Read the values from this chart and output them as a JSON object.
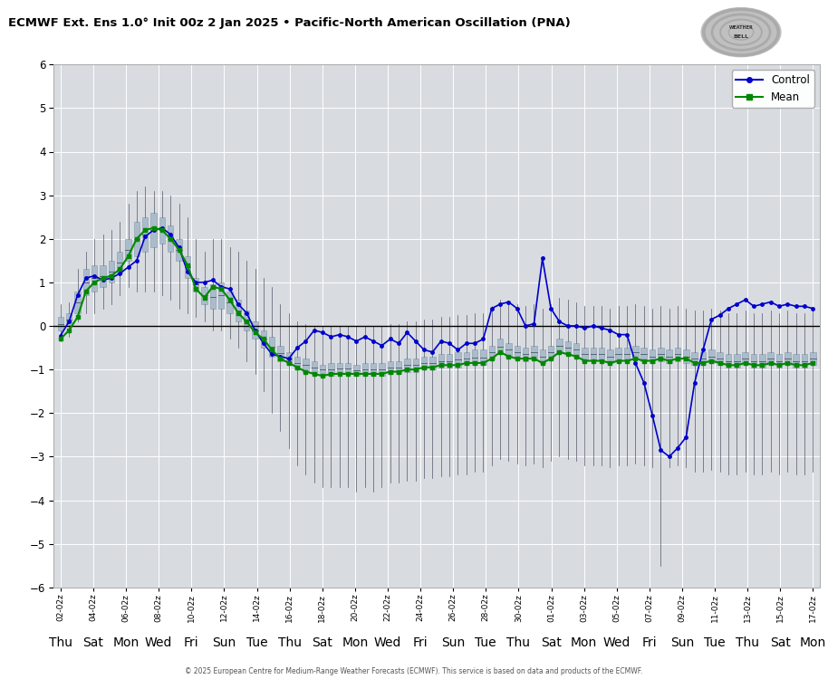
{
  "title": "ECMWF Ext. Ens 1.0° Init 00z 2 Jan 2025 • Pacific-North American Oscillation (PNA)",
  "ylim": [
    -6,
    6
  ],
  "yticks": [
    -6,
    -5,
    -4,
    -3,
    -2,
    -1,
    0,
    1,
    2,
    3,
    4,
    5,
    6
  ],
  "bg_color": "#d8dce0",
  "copyright": "© 2025 European Centre for Medium-Range Weather Forecasts (ECMWF). This service is based on data and products of the ECMWF.",
  "x_dates": [
    "02-02z",
    "04-02z",
    "06-02z",
    "08-02z",
    "10-02z",
    "12-02z",
    "14-02z",
    "16-02z",
    "18-02z",
    "20-02z",
    "22-02z",
    "24-02z",
    "26-02z",
    "28-02z",
    "30-02z",
    "01-02z",
    "03-02z",
    "05-02z",
    "07-02z",
    "09-02z",
    "11-02z",
    "13-02z",
    "15-02z",
    "17-02z"
  ],
  "x_days": [
    "Thu",
    "Sat",
    "Mon",
    "Wed",
    "Fri",
    "Sun",
    "Tue",
    "Thu",
    "Sat",
    "Mon",
    "Wed",
    "Fri",
    "Sun",
    "Tue",
    "Thu",
    "Sat",
    "Mon",
    "Wed",
    "Fri",
    "Sun",
    "Tue",
    "Thu",
    "Sat",
    "Mon"
  ],
  "control_color": "#0000cc",
  "mean_color": "#008800",
  "box_face_color": "#aabbcc",
  "box_edge_color": "#8899aa",
  "whisker_color": "#555566",
  "legend_control": "Control",
  "legend_mean": "Mean",
  "n_steps": 90,
  "control_y": [
    -0.22,
    0.1,
    0.7,
    1.1,
    1.15,
    1.05,
    1.1,
    1.2,
    1.35,
    1.5,
    2.05,
    2.2,
    2.25,
    2.1,
    1.8,
    1.25,
    1.0,
    1.0,
    1.05,
    0.9,
    0.85,
    0.5,
    0.3,
    -0.1,
    -0.4,
    -0.65,
    -0.7,
    -0.75,
    -0.5,
    -0.35,
    -0.1,
    -0.15,
    -0.25,
    -0.2,
    -0.25,
    -0.35,
    -0.25,
    -0.35,
    -0.45,
    -0.3,
    -0.4,
    -0.15,
    -0.35,
    -0.55,
    -0.6,
    -0.35,
    -0.4,
    -0.55,
    -0.4,
    -0.4,
    -0.3,
    0.4,
    0.5,
    0.55,
    0.4,
    0.0,
    0.05,
    1.55,
    0.4,
    0.1,
    0.0,
    0.0,
    -0.05,
    0.0,
    -0.05,
    -0.1,
    -0.2,
    -0.2,
    -0.85,
    -1.3,
    -2.05,
    -2.85,
    -3.0,
    -2.8,
    -2.55,
    -1.3,
    -0.55,
    0.15,
    0.25,
    0.4,
    0.5,
    0.6,
    0.45,
    0.5,
    0.55,
    0.45,
    0.5,
    0.45,
    0.45,
    0.4
  ],
  "mean_y": [
    -0.3,
    -0.1,
    0.2,
    0.8,
    1.0,
    1.1,
    1.15,
    1.3,
    1.6,
    2.0,
    2.2,
    2.25,
    2.2,
    2.0,
    1.75,
    1.4,
    0.85,
    0.65,
    0.9,
    0.85,
    0.6,
    0.3,
    0.1,
    -0.15,
    -0.3,
    -0.55,
    -0.75,
    -0.85,
    -0.95,
    -1.05,
    -1.1,
    -1.15,
    -1.1,
    -1.1,
    -1.1,
    -1.1,
    -1.1,
    -1.1,
    -1.1,
    -1.05,
    -1.05,
    -1.0,
    -1.0,
    -0.95,
    -0.95,
    -0.9,
    -0.9,
    -0.9,
    -0.85,
    -0.85,
    -0.85,
    -0.75,
    -0.6,
    -0.7,
    -0.75,
    -0.75,
    -0.75,
    -0.85,
    -0.75,
    -0.6,
    -0.65,
    -0.7,
    -0.8,
    -0.8,
    -0.8,
    -0.85,
    -0.8,
    -0.8,
    -0.75,
    -0.8,
    -0.8,
    -0.75,
    -0.8,
    -0.75,
    -0.75,
    -0.85,
    -0.85,
    -0.8,
    -0.85,
    -0.9,
    -0.9,
    -0.85,
    -0.9,
    -0.9,
    -0.85,
    -0.9,
    -0.85,
    -0.9,
    -0.9,
    -0.85
  ],
  "box_q1": [
    -0.1,
    0.0,
    0.3,
    0.7,
    0.8,
    0.9,
    1.0,
    1.2,
    1.5,
    1.6,
    1.7,
    1.8,
    1.9,
    1.7,
    1.5,
    1.1,
    0.8,
    0.5,
    0.4,
    0.4,
    0.3,
    0.1,
    -0.1,
    -0.3,
    -0.5,
    -0.7,
    -0.8,
    -0.9,
    -1.0,
    -1.05,
    -1.1,
    -1.1,
    -1.15,
    -1.1,
    -1.1,
    -1.15,
    -1.15,
    -1.15,
    -1.15,
    -1.1,
    -1.1,
    -1.05,
    -1.05,
    -1.0,
    -1.0,
    -0.95,
    -0.95,
    -0.95,
    -0.9,
    -0.9,
    -0.9,
    -0.75,
    -0.65,
    -0.7,
    -0.75,
    -0.8,
    -0.75,
    -0.85,
    -0.75,
    -0.6,
    -0.65,
    -0.7,
    -0.8,
    -0.8,
    -0.8,
    -0.85,
    -0.8,
    -0.8,
    -0.75,
    -0.8,
    -0.85,
    -0.8,
    -0.85,
    -0.8,
    -0.85,
    -0.9,
    -0.9,
    -0.85,
    -0.9,
    -0.95,
    -0.95,
    -0.9,
    -0.95,
    -0.95,
    -0.9,
    -0.95,
    -0.9,
    -0.95,
    -0.95,
    -0.9
  ],
  "box_q3": [
    0.2,
    0.3,
    0.8,
    1.3,
    1.4,
    1.4,
    1.5,
    1.7,
    2.0,
    2.4,
    2.5,
    2.6,
    2.5,
    2.3,
    2.0,
    1.6,
    1.1,
    0.9,
    0.95,
    1.0,
    0.8,
    0.6,
    0.35,
    0.1,
    -0.1,
    -0.25,
    -0.45,
    -0.6,
    -0.7,
    -0.75,
    -0.8,
    -0.9,
    -0.85,
    -0.85,
    -0.85,
    -0.9,
    -0.85,
    -0.85,
    -0.85,
    -0.8,
    -0.8,
    -0.75,
    -0.75,
    -0.7,
    -0.7,
    -0.65,
    -0.65,
    -0.6,
    -0.6,
    -0.55,
    -0.55,
    -0.45,
    -0.3,
    -0.4,
    -0.45,
    -0.5,
    -0.45,
    -0.55,
    -0.45,
    -0.3,
    -0.35,
    -0.4,
    -0.5,
    -0.5,
    -0.5,
    -0.55,
    -0.5,
    -0.5,
    -0.45,
    -0.5,
    -0.55,
    -0.5,
    -0.55,
    -0.5,
    -0.55,
    -0.6,
    -0.6,
    -0.55,
    -0.6,
    -0.65,
    -0.65,
    -0.6,
    -0.65,
    -0.65,
    -0.6,
    -0.65,
    -0.6,
    -0.65,
    -0.65,
    -0.6
  ],
  "box_median": [
    0.05,
    0.15,
    0.55,
    1.0,
    1.1,
    1.15,
    1.25,
    1.45,
    1.75,
    2.0,
    2.1,
    2.2,
    2.2,
    2.0,
    1.75,
    1.35,
    0.95,
    0.7,
    0.67,
    0.7,
    0.55,
    0.35,
    0.12,
    -0.1,
    -0.3,
    -0.47,
    -0.62,
    -0.75,
    -0.85,
    -0.9,
    -0.95,
    -1.0,
    -1.0,
    -0.97,
    -0.97,
    -1.02,
    -1.0,
    -1.0,
    -1.0,
    -0.95,
    -0.95,
    -0.9,
    -0.9,
    -0.85,
    -0.85,
    -0.8,
    -0.8,
    -0.77,
    -0.75,
    -0.72,
    -0.72,
    -0.6,
    -0.47,
    -0.55,
    -0.6,
    -0.65,
    -0.6,
    -0.7,
    -0.6,
    -0.45,
    -0.5,
    -0.55,
    -0.65,
    -0.65,
    -0.65,
    -0.7,
    -0.65,
    -0.65,
    -0.6,
    -0.65,
    -0.7,
    -0.65,
    -0.7,
    -0.65,
    -0.7,
    -0.75,
    -0.75,
    -0.7,
    -0.75,
    -0.8,
    -0.8,
    -0.75,
    -0.8,
    -0.8,
    -0.75,
    -0.8,
    -0.75,
    -0.8,
    -0.8,
    -0.75
  ],
  "box_wlow": [
    -0.35,
    -0.25,
    0.1,
    0.3,
    0.3,
    0.4,
    0.5,
    0.7,
    0.9,
    0.8,
    0.8,
    0.8,
    0.7,
    0.6,
    0.4,
    0.3,
    0.2,
    0.1,
    -0.1,
    -0.1,
    -0.3,
    -0.3,
    -0.5,
    -0.7,
    -0.9,
    -1.05,
    -1.2,
    -1.35,
    -1.45,
    -1.5,
    -1.6,
    -1.65,
    -1.65,
    -1.65,
    -1.65,
    -1.7,
    -1.65,
    -1.7,
    -1.65,
    -1.6,
    -1.6,
    -1.55,
    -1.55,
    -1.5,
    -1.5,
    -1.45,
    -1.45,
    -1.4,
    -1.4,
    -1.35,
    -1.35,
    -1.2,
    -1.05,
    -1.1,
    -1.15,
    -1.2,
    -1.15,
    -1.25,
    -1.1,
    -1.0,
    -1.05,
    -1.1,
    -1.2,
    -1.2,
    -1.2,
    -1.25,
    -1.2,
    -1.2,
    -1.15,
    -1.2,
    -1.25,
    -1.2,
    -1.25,
    -1.2,
    -1.25,
    -1.35,
    -1.35,
    -1.3,
    -1.35,
    -1.4,
    -1.4,
    -1.35,
    -1.4,
    -1.4,
    -1.35,
    -1.4,
    -1.35,
    -1.4,
    -1.4,
    -1.35
  ],
  "box_whigh": [
    0.5,
    0.55,
    1.3,
    1.7,
    2.0,
    2.1,
    2.2,
    2.4,
    2.8,
    3.1,
    3.2,
    3.1,
    3.1,
    3.0,
    2.8,
    2.5,
    2.0,
    1.7,
    2.0,
    2.0,
    1.8,
    1.7,
    1.5,
    1.3,
    1.1,
    0.9,
    0.5,
    0.3,
    0.1,
    0.05,
    0.0,
    0.0,
    0.0,
    0.0,
    0.0,
    0.0,
    0.0,
    0.0,
    0.0,
    0.05,
    0.05,
    0.1,
    0.1,
    0.15,
    0.15,
    0.2,
    0.2,
    0.25,
    0.25,
    0.3,
    0.3,
    0.45,
    0.6,
    0.55,
    0.5,
    0.45,
    0.5,
    0.4,
    0.5,
    0.65,
    0.6,
    0.55,
    0.45,
    0.45,
    0.45,
    0.4,
    0.45,
    0.45,
    0.5,
    0.45,
    0.4,
    0.45,
    0.4,
    0.45,
    0.4,
    0.35,
    0.35,
    0.4,
    0.35,
    0.3,
    0.3,
    0.35,
    0.3,
    0.3,
    0.35,
    0.3,
    0.35,
    0.3,
    0.3,
    0.35
  ],
  "box_wlow_ext": [
    -0.35,
    -0.25,
    0.1,
    0.3,
    0.3,
    0.4,
    0.5,
    0.7,
    0.9,
    0.8,
    0.8,
    0.8,
    0.7,
    0.6,
    0.4,
    0.3,
    0.2,
    0.1,
    -0.1,
    -0.1,
    -0.3,
    -0.5,
    -0.8,
    -1.1,
    -1.5,
    -2.0,
    -2.4,
    -2.8,
    -3.2,
    -3.4,
    -3.6,
    -3.7,
    -3.7,
    -3.7,
    -3.7,
    -3.8,
    -3.7,
    -3.8,
    -3.7,
    -3.6,
    -3.6,
    -3.55,
    -3.55,
    -3.5,
    -3.5,
    -3.45,
    -3.45,
    -3.4,
    -3.4,
    -3.35,
    -3.35,
    -3.2,
    -3.05,
    -3.1,
    -3.15,
    -3.2,
    -3.15,
    -3.25,
    -3.1,
    -3.0,
    -3.05,
    -3.1,
    -3.2,
    -3.2,
    -3.2,
    -3.25,
    -3.2,
    -3.2,
    -3.15,
    -3.2,
    -3.25,
    -5.5,
    -3.25,
    -3.2,
    -3.25,
    -3.35,
    -3.35,
    -3.3,
    -3.35,
    -3.4,
    -3.4,
    -3.35,
    -3.4,
    -3.4,
    -3.35,
    -3.4,
    -3.35,
    -3.4,
    -3.4,
    -3.35
  ]
}
